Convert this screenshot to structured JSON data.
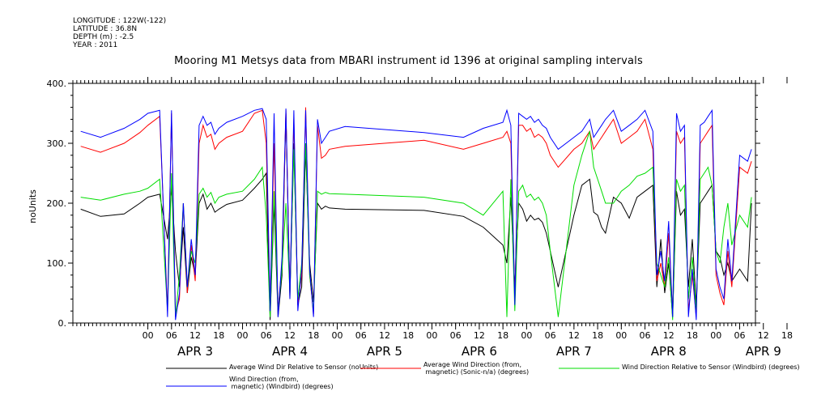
{
  "header": {
    "longitude": "LONGITUDE : 122W(-122)",
    "latitude": "LATITUDE : 36.8N",
    "depth": "DEPTH (m) : -2.5",
    "year": "YEAR : 2011"
  },
  "chart_data": {
    "type": "line",
    "title": "Mooring M1 Metsys data from MBARI instrument id 1396 at original sampling intervals",
    "ylabel": "noUnits",
    "xlabel": "",
    "ylim": [
      0,
      400
    ],
    "y_ticks": [
      "0.",
      "100.",
      "200.",
      "300.",
      "400."
    ],
    "xlim_hours": [
      -19,
      154
    ],
    "hour_ticks": [
      "00",
      "06",
      "12",
      "18",
      "00",
      "06",
      "12",
      "18",
      "00",
      "06",
      "12",
      "18",
      "00",
      "06",
      "12",
      "18",
      "00",
      "06",
      "12",
      "18",
      "00",
      "06",
      "12",
      "18",
      "00",
      "06",
      "12",
      "18"
    ],
    "day_labels": [
      "APR   3",
      "APR   4",
      "APR   5",
      "APR   6",
      "APR   7",
      "APR   8",
      "APR   9"
    ],
    "grid": false,
    "legend_position": "bottom",
    "series": [
      {
        "name": "Average Wind Dir Relative to Sensor (noUnits)",
        "color": "#000000",
        "x": [
          -17,
          -12,
          -6,
          -2,
          0,
          3,
          5,
          6,
          7,
          8,
          9,
          10,
          11,
          12,
          13,
          14,
          15,
          16,
          17,
          18,
          20,
          24,
          27,
          29,
          30,
          31,
          32,
          33,
          34,
          35,
          36,
          37,
          38,
          39,
          40,
          41,
          42,
          43,
          44,
          45,
          46,
          50,
          70,
          80,
          85,
          90,
          91,
          92,
          93,
          94,
          95,
          96,
          97,
          98,
          99,
          100,
          101,
          102,
          104,
          108,
          110,
          112,
          113,
          114,
          115,
          116,
          118,
          120,
          122,
          124,
          126,
          128,
          129,
          130,
          131,
          132,
          133,
          134,
          135,
          136,
          137,
          138,
          139,
          140,
          141,
          142,
          143,
          144,
          145,
          146,
          147,
          148,
          150,
          152,
          153
        ],
        "y": [
          190,
          178,
          182,
          200,
          210,
          215,
          140,
          225,
          120,
          60,
          160,
          50,
          110,
          80,
          200,
          215,
          190,
          200,
          185,
          190,
          198,
          205,
          225,
          240,
          250,
          5,
          200,
          10,
          80,
          350,
          40,
          300,
          30,
          60,
          290,
          100,
          35,
          200,
          190,
          195,
          192,
          190,
          188,
          178,
          160,
          130,
          100,
          210,
          60,
          200,
          190,
          170,
          180,
          172,
          175,
          168,
          150,
          120,
          60,
          180,
          230,
          240,
          185,
          180,
          160,
          150,
          210,
          200,
          175,
          210,
          220,
          230,
          60,
          140,
          50,
          100,
          10,
          220,
          180,
          190,
          60,
          140,
          30,
          200,
          210,
          220,
          230,
          120,
          110,
          80,
          100,
          70,
          90,
          70,
          200
        ]
      },
      {
        "name": "Average Wind Direction (from, magnetic) (Sonic-n/a) (degrees)",
        "color": "#ff0000",
        "x": [
          -17,
          -12,
          -6,
          -2,
          0,
          3,
          5,
          6,
          7,
          8,
          9,
          10,
          11,
          12,
          13,
          14,
          15,
          16,
          17,
          18,
          20,
          24,
          27,
          29,
          30,
          31,
          32,
          33,
          34,
          35,
          36,
          37,
          38,
          39,
          40,
          41,
          42,
          43,
          44,
          45,
          46,
          50,
          70,
          80,
          85,
          90,
          91,
          92,
          93,
          94,
          95,
          96,
          97,
          98,
          99,
          100,
          101,
          102,
          104,
          108,
          110,
          112,
          113,
          114,
          115,
          116,
          118,
          120,
          122,
          124,
          126,
          128,
          129,
          130,
          131,
          132,
          133,
          134,
          135,
          136,
          137,
          138,
          139,
          140,
          141,
          142,
          143,
          144,
          145,
          146,
          147,
          148,
          150,
          152,
          153
        ],
        "y": [
          295,
          285,
          300,
          318,
          330,
          345,
          20,
          350,
          15,
          40,
          200,
          50,
          130,
          70,
          300,
          330,
          310,
          315,
          290,
          300,
          310,
          320,
          350,
          355,
          300,
          30,
          300,
          20,
          100,
          355,
          50,
          340,
          30,
          80,
          360,
          80,
          15,
          330,
          275,
          280,
          290,
          295,
          305,
          290,
          300,
          310,
          320,
          300,
          40,
          330,
          330,
          320,
          325,
          310,
          315,
          310,
          300,
          280,
          260,
          290,
          300,
          320,
          290,
          300,
          310,
          320,
          340,
          300,
          310,
          320,
          340,
          290,
          70,
          100,
          60,
          150,
          15,
          320,
          300,
          310,
          20,
          80,
          10,
          300,
          310,
          320,
          330,
          80,
          50,
          30,
          120,
          60,
          260,
          250,
          270
        ]
      },
      {
        "name": "Wind Direction Relative to Sensor (Windbird) (degrees)",
        "color": "#00dd00",
        "x": [
          -17,
          -12,
          -6,
          -2,
          0,
          3,
          5,
          6,
          7,
          8,
          9,
          10,
          11,
          12,
          13,
          14,
          15,
          16,
          17,
          18,
          20,
          24,
          27,
          29,
          30,
          31,
          32,
          33,
          34,
          35,
          36,
          37,
          38,
          39,
          40,
          41,
          42,
          43,
          44,
          45,
          46,
          50,
          70,
          80,
          85,
          90,
          91,
          92,
          93,
          94,
          95,
          96,
          97,
          98,
          99,
          100,
          101,
          102,
          104,
          108,
          110,
          112,
          113,
          114,
          115,
          116,
          118,
          120,
          122,
          124,
          126,
          128,
          129,
          130,
          131,
          132,
          133,
          134,
          135,
          136,
          137,
          138,
          139,
          140,
          141,
          142,
          143,
          144,
          145,
          146,
          147,
          148,
          150,
          152,
          153
        ],
        "y": [
          210,
          205,
          215,
          220,
          225,
          240,
          20,
          250,
          10,
          80,
          200,
          60,
          120,
          100,
          215,
          225,
          210,
          218,
          200,
          210,
          215,
          220,
          240,
          260,
          180,
          10,
          220,
          20,
          90,
          200,
          50,
          290,
          40,
          100,
          300,
          80,
          20,
          220,
          215,
          218,
          216,
          215,
          210,
          200,
          180,
          220,
          10,
          240,
          20,
          220,
          230,
          210,
          215,
          205,
          210,
          200,
          180,
          120,
          10,
          230,
          280,
          320,
          260,
          240,
          220,
          200,
          200,
          220,
          230,
          245,
          250,
          260,
          100,
          80,
          60,
          110,
          5,
          240,
          220,
          230,
          40,
          110,
          20,
          240,
          250,
          260,
          230,
          120,
          100,
          160,
          200,
          130,
          180,
          160,
          210
        ]
      },
      {
        "name": "Wind Direction (from, magnetic) (Windbird) (degrees)",
        "color": "#0000ff",
        "x": [
          -17,
          -12,
          -6,
          -2,
          0,
          3,
          5,
          6,
          7,
          8,
          9,
          10,
          11,
          12,
          13,
          14,
          15,
          16,
          17,
          18,
          20,
          24,
          27,
          29,
          30,
          31,
          32,
          33,
          34,
          35,
          36,
          37,
          38,
          39,
          40,
          41,
          42,
          43,
          44,
          45,
          46,
          50,
          70,
          80,
          85,
          90,
          91,
          92,
          93,
          94,
          95,
          96,
          97,
          98,
          99,
          100,
          101,
          102,
          104,
          108,
          110,
          112,
          113,
          114,
          115,
          116,
          118,
          120,
          122,
          124,
          126,
          128,
          129,
          130,
          131,
          132,
          133,
          134,
          135,
          136,
          137,
          138,
          139,
          140,
          141,
          142,
          143,
          144,
          145,
          146,
          147,
          148,
          150,
          152,
          153
        ],
        "y": [
          320,
          310,
          325,
          340,
          350,
          355,
          10,
          355,
          5,
          50,
          200,
          60,
          140,
          80,
          330,
          345,
          330,
          335,
          315,
          325,
          335,
          345,
          355,
          358,
          340,
          20,
          350,
          10,
          110,
          358,
          40,
          355,
          20,
          90,
          355,
          90,
          10,
          340,
          300,
          310,
          320,
          328,
          318,
          310,
          325,
          335,
          355,
          330,
          30,
          350,
          345,
          340,
          345,
          335,
          340,
          330,
          325,
          310,
          290,
          310,
          320,
          340,
          310,
          320,
          330,
          340,
          355,
          320,
          330,
          340,
          355,
          320,
          80,
          120,
          70,
          170,
          10,
          350,
          320,
          330,
          10,
          90,
          5,
          330,
          335,
          345,
          355,
          90,
          60,
          40,
          140,
          70,
          280,
          270,
          290
        ]
      }
    ]
  }
}
